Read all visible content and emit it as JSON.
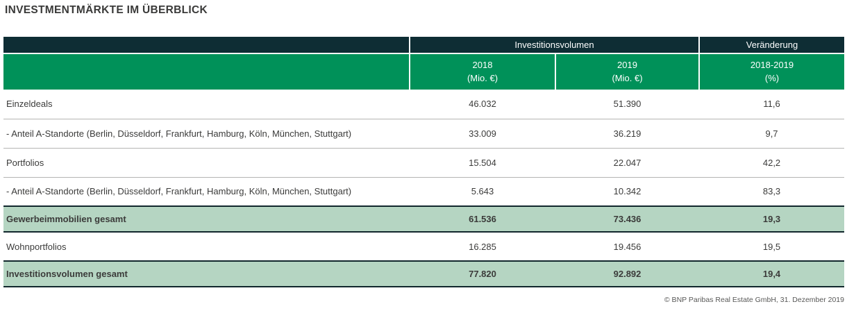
{
  "title": "INVESTMENTMÄRKTE IM ÜBERBLICK",
  "table": {
    "group_headers": [
      "Investitionsvolumen",
      "Veränderung"
    ],
    "column_headers": [
      "2018\n(Mio. €)",
      "2019\n(Mio. €)",
      "2018-2019\n(%)"
    ],
    "rows": [
      {
        "label": "Einzeldeals",
        "v2018": "46.032",
        "v2019": "51.390",
        "change": "11,6",
        "highlight": false
      },
      {
        "label": "- Anteil A-Standorte (Berlin, Düsseldorf, Frankfurt, Hamburg, Köln, München, Stuttgart)",
        "v2018": "33.009",
        "v2019": "36.219",
        "change": "9,7",
        "highlight": false
      },
      {
        "label": "Portfolios",
        "v2018": "15.504",
        "v2019": "22.047",
        "change": "42,2",
        "highlight": false
      },
      {
        "label": "- Anteil A-Standorte (Berlin, Düsseldorf, Frankfurt, Hamburg, Köln, München, Stuttgart)",
        "v2018": "5.643",
        "v2019": "10.342",
        "change": "83,3",
        "highlight": false
      },
      {
        "label": "Gewerbeimmobilien gesamt",
        "v2018": "61.536",
        "v2019": "73.436",
        "change": "19,3",
        "highlight": true
      },
      {
        "label": "Wohnportfolios",
        "v2018": "16.285",
        "v2019": "19.456",
        "change": "19,5",
        "highlight": false
      },
      {
        "label": "Investitionsvolumen gesamt",
        "v2018": "77.820",
        "v2019": "92.892",
        "change": "19,4",
        "highlight": true
      }
    ]
  },
  "footer": {
    "copyright": "© BNP Paribas Real Estate GmbH, 31. Dezember 2019"
  },
  "colors": {
    "header_dark": "#0e2d34",
    "header_green": "#009159",
    "highlight_green": "#b5d5c2",
    "row_line_gray": "#b4b4b3",
    "text": "#3b3b3a"
  },
  "chart_data": {
    "type": "table",
    "title": "INVESTMENTMÄRKTE IM ÜBERBLICK",
    "column_groups": [
      {
        "label": "Investitionsvolumen",
        "spans": [
          "2018 (Mio. €)",
          "2019 (Mio. €)"
        ]
      },
      {
        "label": "Veränderung",
        "spans": [
          "2018-2019 (%)"
        ]
      }
    ],
    "columns": [
      "",
      "2018 (Mio. €)",
      "2019 (Mio. €)",
      "2018-2019 (%)"
    ],
    "rows": [
      [
        "Einzeldeals",
        46032,
        51390,
        11.6
      ],
      [
        "- Anteil A-Standorte (Berlin, Düsseldorf, Frankfurt, Hamburg, Köln, München, Stuttgart)",
        33009,
        36219,
        9.7
      ],
      [
        "Portfolios",
        15504,
        22047,
        42.2
      ],
      [
        "- Anteil A-Standorte (Berlin, Düsseldorf, Frankfurt, Hamburg, Köln, München, Stuttgart)",
        5643,
        10342,
        83.3
      ],
      [
        "Gewerbeimmobilien gesamt",
        61536,
        73436,
        19.3
      ],
      [
        "Wohnportfolios",
        16285,
        19456,
        19.5
      ],
      [
        "Investitionsvolumen gesamt",
        77820,
        92892,
        19.4
      ]
    ],
    "highlighted_total_rows": [
      "Gewerbeimmobilien gesamt",
      "Investitionsvolumen gesamt"
    ],
    "source": "© BNP Paribas Real Estate GmbH, 31. Dezember 2019"
  }
}
